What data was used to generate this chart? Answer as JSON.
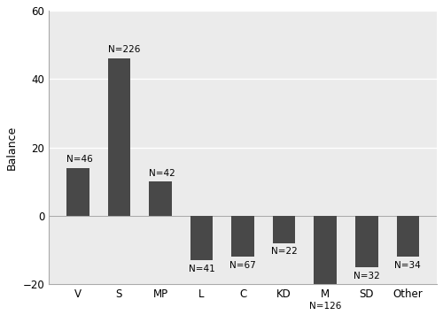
{
  "categories": [
    "V",
    "S",
    "MP",
    "L",
    "C",
    "KD",
    "M",
    "SD",
    "Other"
  ],
  "values": [
    14,
    46,
    10,
    -13,
    -12,
    -8,
    -24,
    -15,
    -12
  ],
  "n_labels": [
    "N=46",
    "N=226",
    "N=42",
    "N=41",
    "N=67",
    "N=22",
    "N=126",
    "N=32",
    "N=34"
  ],
  "bar_color": "#484848",
  "ylim": [
    -20,
    60
  ],
  "yticks": [
    -20,
    0,
    20,
    40,
    60
  ],
  "ylabel": "Balance",
  "background_color": "#ffffff",
  "plot_bg_color": "#ebebeb",
  "grid_color": "#ffffff",
  "label_fontsize": 7.5,
  "tick_fontsize": 8.5,
  "ylabel_fontsize": 9,
  "bar_width": 0.55
}
